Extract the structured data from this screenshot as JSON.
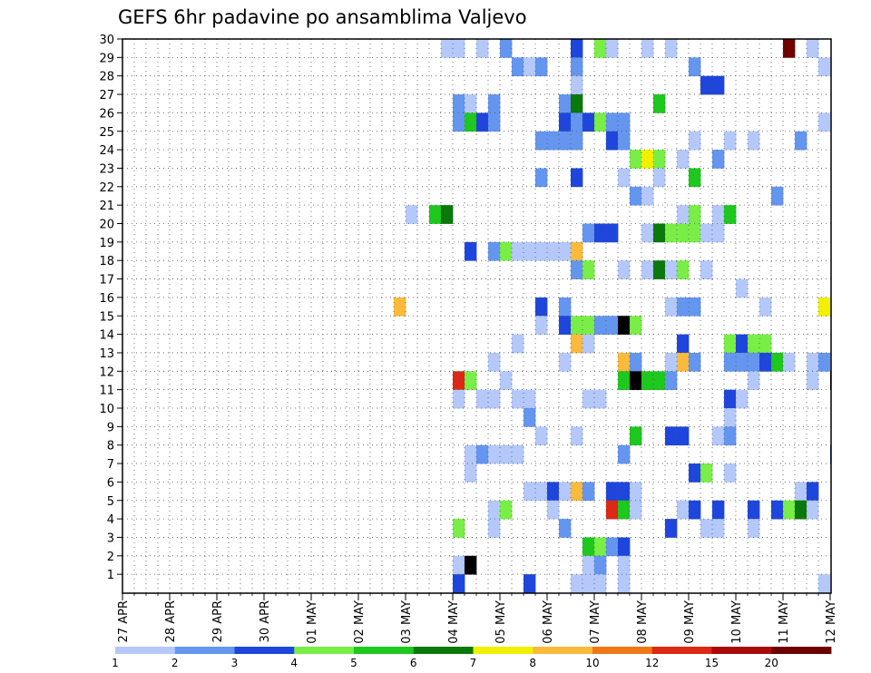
{
  "chart_data": {
    "type": "heatmap",
    "title": "GEFS 6hr padavine po ansamblima Valjevo",
    "xlabel": "",
    "ylabel": "",
    "x_tick_labels": [
      "27 APR",
      "28 APR",
      "29 APR",
      "30 APR",
      "01 MAY",
      "02 MAY",
      "03 MAY",
      "04 MAY",
      "05 MAY",
      "06 MAY",
      "07 MAY",
      "08 MAY",
      "09 MAY",
      "10 MAY",
      "11 MAY",
      "12 MAY"
    ],
    "y_tick_labels": [
      "1",
      "2",
      "3",
      "4",
      "5",
      "6",
      "7",
      "8",
      "9",
      "10",
      "11",
      "12",
      "13",
      "14",
      "15",
      "16",
      "17",
      "18",
      "19",
      "20",
      "21",
      "22",
      "23",
      "24",
      "25",
      "26",
      "27",
      "28",
      "29",
      "30"
    ],
    "x_unit": "6-hour step since 27 APR 00Z",
    "xlim": [
      0,
      60
    ],
    "ylim": [
      0,
      30
    ],
    "grid": true,
    "colorbar": {
      "levels": [
        1,
        2,
        3,
        4,
        5,
        6,
        7,
        8,
        10,
        12,
        15,
        20
      ],
      "colors": [
        "#b4c8fa",
        "#6496f0",
        "#1e46dc",
        "#78ee46",
        "#1ec81e",
        "#0a780a",
        "#f0f000",
        "#faba3c",
        "#f07814",
        "#dc2814",
        "#aa0a0a",
        "#6e0000"
      ]
    },
    "cells": [
      [
        30,
        27,
        1
      ],
      [
        30,
        28,
        1
      ],
      [
        30,
        30,
        1
      ],
      [
        30,
        32,
        2
      ],
      [
        30,
        38,
        3
      ],
      [
        30,
        40,
        4
      ],
      [
        30,
        41,
        1
      ],
      [
        30,
        44,
        1
      ],
      [
        30,
        46,
        1
      ],
      [
        30,
        56,
        12
      ],
      [
        30,
        58,
        1
      ],
      [
        30,
        62,
        1
      ],
      [
        30,
        71,
        3
      ],
      [
        29,
        33,
        2
      ],
      [
        29,
        34,
        1
      ],
      [
        29,
        35,
        2
      ],
      [
        29,
        38,
        2
      ],
      [
        29,
        48,
        2
      ],
      [
        29,
        59,
        1
      ],
      [
        29,
        60,
        1
      ],
      [
        29,
        62,
        1
      ],
      [
        29,
        63,
        1
      ],
      [
        29,
        64,
        1
      ],
      [
        29,
        65,
        1
      ],
      [
        28,
        38,
        1
      ],
      [
        28,
        49,
        3
      ],
      [
        28,
        50,
        3
      ],
      [
        28,
        63,
        1
      ],
      [
        28,
        65,
        1
      ],
      [
        28,
        67,
        2
      ],
      [
        28,
        68,
        3
      ],
      [
        28,
        75,
        1
      ],
      [
        27,
        28,
        2
      ],
      [
        27,
        29,
        1
      ],
      [
        27,
        31,
        2
      ],
      [
        27,
        37,
        2
      ],
      [
        27,
        38,
        6
      ],
      [
        27,
        45,
        5
      ],
      [
        27,
        61,
        2
      ],
      [
        27,
        62,
        1
      ],
      [
        26,
        28,
        2
      ],
      [
        26,
        29,
        5
      ],
      [
        26,
        30,
        3
      ],
      [
        26,
        31,
        2
      ],
      [
        26,
        37,
        3
      ],
      [
        26,
        38,
        2
      ],
      [
        26,
        39,
        3
      ],
      [
        26,
        40,
        4
      ],
      [
        26,
        41,
        2
      ],
      [
        26,
        42,
        2
      ],
      [
        26,
        59,
        1
      ],
      [
        26,
        65,
        4
      ],
      [
        26,
        66,
        2
      ],
      [
        26,
        67,
        14
      ],
      [
        26,
        68,
        2
      ],
      [
        25,
        35,
        2
      ],
      [
        25,
        36,
        2
      ],
      [
        25,
        37,
        2
      ],
      [
        25,
        38,
        2
      ],
      [
        25,
        41,
        3
      ],
      [
        25,
        42,
        2
      ],
      [
        25,
        48,
        1
      ],
      [
        25,
        51,
        1
      ],
      [
        25,
        53,
        1
      ],
      [
        25,
        57,
        2
      ],
      [
        25,
        65,
        1
      ],
      [
        24,
        43,
        4
      ],
      [
        24,
        44,
        7
      ],
      [
        24,
        45,
        4
      ],
      [
        24,
        47,
        1
      ],
      [
        24,
        50,
        2
      ],
      [
        24,
        72,
        1
      ],
      [
        24,
        75,
        8
      ],
      [
        23,
        35,
        2
      ],
      [
        23,
        38,
        3
      ],
      [
        23,
        42,
        1
      ],
      [
        23,
        45,
        1
      ],
      [
        23,
        48,
        5
      ],
      [
        23,
        62,
        1
      ],
      [
        22,
        43,
        2
      ],
      [
        22,
        44,
        1
      ],
      [
        22,
        55,
        2
      ],
      [
        22,
        67,
        1
      ],
      [
        22,
        68,
        1
      ],
      [
        22,
        71,
        2
      ],
      [
        22,
        74,
        3
      ],
      [
        21,
        24,
        1
      ],
      [
        21,
        26,
        5
      ],
      [
        21,
        27,
        6
      ],
      [
        21,
        47,
        1
      ],
      [
        21,
        48,
        4
      ],
      [
        21,
        50,
        1
      ],
      [
        21,
        51,
        5
      ],
      [
        20,
        39,
        2
      ],
      [
        20,
        40,
        3
      ],
      [
        20,
        41,
        3
      ],
      [
        20,
        44,
        1
      ],
      [
        20,
        45,
        6
      ],
      [
        20,
        46,
        4
      ],
      [
        20,
        47,
        4
      ],
      [
        20,
        48,
        4
      ],
      [
        20,
        49,
        1
      ],
      [
        20,
        50,
        1
      ],
      [
        20,
        71,
        1
      ],
      [
        20,
        72,
        3
      ],
      [
        19,
        29,
        3
      ],
      [
        19,
        31,
        2
      ],
      [
        19,
        32,
        4
      ],
      [
        19,
        33,
        1
      ],
      [
        19,
        34,
        1
      ],
      [
        19,
        35,
        1
      ],
      [
        19,
        36,
        1
      ],
      [
        19,
        37,
        1
      ],
      [
        19,
        38,
        8
      ],
      [
        18,
        38,
        2
      ],
      [
        18,
        39,
        4
      ],
      [
        18,
        42,
        1
      ],
      [
        18,
        44,
        1
      ],
      [
        18,
        45,
        6
      ],
      [
        18,
        46,
        1
      ],
      [
        18,
        47,
        4
      ],
      [
        18,
        49,
        1
      ],
      [
        18,
        62,
        1
      ],
      [
        18,
        63,
        5
      ],
      [
        18,
        64,
        1
      ],
      [
        18,
        66,
        1
      ],
      [
        18,
        68,
        1
      ],
      [
        17,
        52,
        1
      ],
      [
        16,
        23,
        8
      ],
      [
        16,
        35,
        3
      ],
      [
        16,
        37,
        2
      ],
      [
        16,
        46,
        1
      ],
      [
        16,
        47,
        2
      ],
      [
        16,
        48,
        2
      ],
      [
        16,
        54,
        1
      ],
      [
        16,
        59,
        7
      ],
      [
        16,
        61,
        4
      ],
      [
        16,
        62,
        2
      ],
      [
        16,
        63,
        1
      ],
      [
        16,
        65,
        1
      ],
      [
        16,
        66,
        1
      ],
      [
        16,
        67,
        4
      ],
      [
        16,
        68,
        5
      ],
      [
        15,
        35,
        1
      ],
      [
        15,
        37,
        3
      ],
      [
        15,
        38,
        4
      ],
      [
        15,
        39,
        4
      ],
      [
        15,
        40,
        2
      ],
      [
        15,
        41,
        2
      ],
      [
        15,
        42,
        14
      ],
      [
        15,
        43,
        4
      ],
      [
        15,
        62,
        1
      ],
      [
        14,
        33,
        1
      ],
      [
        14,
        38,
        8
      ],
      [
        14,
        39,
        1
      ],
      [
        14,
        47,
        3
      ],
      [
        14,
        51,
        4
      ],
      [
        14,
        52,
        3
      ],
      [
        14,
        53,
        4
      ],
      [
        14,
        54,
        4
      ],
      [
        13,
        31,
        1
      ],
      [
        13,
        37,
        1
      ],
      [
        13,
        42,
        8
      ],
      [
        13,
        43,
        2
      ],
      [
        13,
        46,
        1
      ],
      [
        13,
        47,
        8
      ],
      [
        13,
        48,
        2
      ],
      [
        13,
        51,
        2
      ],
      [
        13,
        52,
        2
      ],
      [
        13,
        53,
        2
      ],
      [
        13,
        54,
        3
      ],
      [
        13,
        55,
        5
      ],
      [
        13,
        56,
        1
      ],
      [
        13,
        58,
        1
      ],
      [
        13,
        59,
        2
      ],
      [
        13,
        60,
        1
      ],
      [
        13,
        61,
        1
      ],
      [
        13,
        62,
        2
      ],
      [
        13,
        63,
        2
      ],
      [
        13,
        67,
        3
      ],
      [
        13,
        68,
        2
      ],
      [
        13,
        70,
        1
      ],
      [
        13,
        75,
        8
      ],
      [
        13,
        76,
        3
      ],
      [
        12,
        28,
        10
      ],
      [
        12,
        29,
        4
      ],
      [
        12,
        32,
        1
      ],
      [
        12,
        42,
        5
      ],
      [
        12,
        43,
        14
      ],
      [
        12,
        44,
        5
      ],
      [
        12,
        45,
        5
      ],
      [
        12,
        46,
        2
      ],
      [
        12,
        53,
        1
      ],
      [
        12,
        58,
        1
      ],
      [
        12,
        60,
        15
      ],
      [
        12,
        61,
        1
      ],
      [
        12,
        63,
        8
      ],
      [
        12,
        64,
        1
      ],
      [
        12,
        65,
        7
      ],
      [
        12,
        66,
        4
      ],
      [
        12,
        73,
        4
      ],
      [
        12,
        74,
        3
      ],
      [
        12,
        75,
        2
      ],
      [
        12,
        76,
        3
      ],
      [
        11,
        28,
        1
      ],
      [
        11,
        30,
        1
      ],
      [
        11,
        31,
        1
      ],
      [
        11,
        33,
        1
      ],
      [
        11,
        34,
        1
      ],
      [
        11,
        39,
        1
      ],
      [
        11,
        40,
        1
      ],
      [
        11,
        51,
        3
      ],
      [
        11,
        52,
        1
      ],
      [
        10,
        34,
        2
      ],
      [
        10,
        51,
        1
      ],
      [
        10,
        74,
        1
      ],
      [
        10,
        75,
        8
      ],
      [
        10,
        76,
        6
      ],
      [
        9,
        35,
        1
      ],
      [
        9,
        38,
        1
      ],
      [
        9,
        43,
        5
      ],
      [
        9,
        46,
        3
      ],
      [
        9,
        47,
        3
      ],
      [
        9,
        50,
        1
      ],
      [
        9,
        51,
        2
      ],
      [
        9,
        63,
        2
      ],
      [
        8,
        29,
        1
      ],
      [
        8,
        30,
        2
      ],
      [
        8,
        31,
        1
      ],
      [
        8,
        32,
        1
      ],
      [
        8,
        33,
        1
      ],
      [
        8,
        42,
        2
      ],
      [
        8,
        60,
        3
      ],
      [
        8,
        61,
        2
      ],
      [
        8,
        62,
        4
      ],
      [
        8,
        63,
        5
      ],
      [
        8,
        64,
        8
      ],
      [
        8,
        65,
        1
      ],
      [
        8,
        68,
        2
      ],
      [
        8,
        74,
        2
      ],
      [
        7,
        29,
        1
      ],
      [
        7,
        48,
        3
      ],
      [
        7,
        49,
        4
      ],
      [
        7,
        51,
        1
      ],
      [
        7,
        62,
        1
      ],
      [
        7,
        68,
        2
      ],
      [
        7,
        69,
        2
      ],
      [
        6,
        34,
        1
      ],
      [
        6,
        35,
        1
      ],
      [
        6,
        36,
        3
      ],
      [
        6,
        37,
        1
      ],
      [
        6,
        38,
        8
      ],
      [
        6,
        39,
        2
      ],
      [
        6,
        41,
        3
      ],
      [
        6,
        42,
        3
      ],
      [
        6,
        43,
        1
      ],
      [
        6,
        57,
        1
      ],
      [
        6,
        58,
        3
      ],
      [
        6,
        61,
        5
      ],
      [
        6,
        62,
        4
      ],
      [
        6,
        63,
        1
      ],
      [
        6,
        69,
        1
      ],
      [
        5,
        31,
        1
      ],
      [
        5,
        32,
        4
      ],
      [
        5,
        36,
        1
      ],
      [
        5,
        41,
        10
      ],
      [
        5,
        42,
        5
      ],
      [
        5,
        43,
        1
      ],
      [
        5,
        47,
        1
      ],
      [
        5,
        48,
        3
      ],
      [
        5,
        50,
        3
      ],
      [
        5,
        53,
        3
      ],
      [
        5,
        55,
        3
      ],
      [
        5,
        56,
        4
      ],
      [
        5,
        57,
        6
      ],
      [
        5,
        58,
        1
      ],
      [
        5,
        61,
        2
      ],
      [
        5,
        62,
        1
      ],
      [
        5,
        68,
        4
      ],
      [
        5,
        75,
        1
      ],
      [
        4,
        28,
        4
      ],
      [
        4,
        31,
        1
      ],
      [
        4,
        37,
        2
      ],
      [
        4,
        46,
        3
      ],
      [
        4,
        49,
        1
      ],
      [
        4,
        50,
        1
      ],
      [
        4,
        53,
        1
      ],
      [
        4,
        71,
        1
      ],
      [
        4,
        72,
        8
      ],
      [
        4,
        73,
        1
      ],
      [
        3,
        39,
        5
      ],
      [
        3,
        40,
        4
      ],
      [
        3,
        41,
        2
      ],
      [
        3,
        42,
        3
      ],
      [
        2,
        28,
        1
      ],
      [
        2,
        29,
        16
      ],
      [
        2,
        39,
        1
      ],
      [
        2,
        40,
        2
      ],
      [
        2,
        42,
        1
      ],
      [
        2,
        72,
        2
      ],
      [
        2,
        73,
        6
      ],
      [
        2,
        74,
        4
      ],
      [
        2,
        76,
        2
      ],
      [
        1,
        28,
        3
      ],
      [
        1,
        34,
        3
      ],
      [
        1,
        38,
        1
      ],
      [
        1,
        39,
        1
      ],
      [
        1,
        40,
        1
      ],
      [
        1,
        42,
        1
      ],
      [
        1,
        59,
        1
      ],
      [
        1,
        75,
        1
      ],
      [
        1,
        76,
        1
      ]
    ]
  }
}
